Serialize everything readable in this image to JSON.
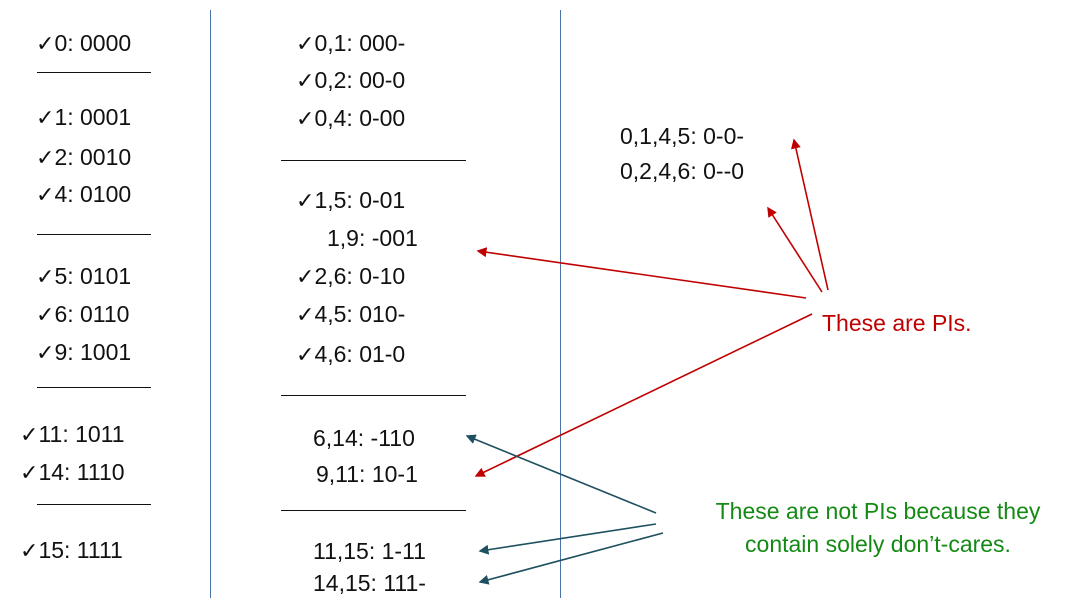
{
  "check_mark": "✓",
  "colors": {
    "divider": "#4a74a8",
    "red_arrow": "#c00000",
    "teal_arrow": "#1f5060",
    "green_text": "#148a14"
  },
  "column1": {
    "groups": [
      [
        {
          "checked": true,
          "text": "0: 0000"
        }
      ],
      [
        {
          "checked": true,
          "text": "1: 0001"
        },
        {
          "checked": true,
          "text": "2: 0010"
        },
        {
          "checked": true,
          "text": "4: 0100"
        }
      ],
      [
        {
          "checked": true,
          "text": "5: 0101"
        },
        {
          "checked": true,
          "text": "6: 0110"
        },
        {
          "checked": true,
          "text": "9: 1001"
        }
      ],
      [
        {
          "checked": true,
          "text": "11: 1011"
        },
        {
          "checked": true,
          "text": "14: 1110"
        }
      ],
      [
        {
          "checked": true,
          "text": "15: 1111"
        }
      ]
    ]
  },
  "column2": {
    "groups": [
      [
        {
          "checked": true,
          "text": "0,1: 000-"
        },
        {
          "checked": true,
          "text": "0,2: 00-0"
        },
        {
          "checked": true,
          "text": "0,4: 0-00"
        }
      ],
      [
        {
          "checked": true,
          "text": "1,5: 0-01"
        },
        {
          "checked": false,
          "text": "1,9: -001"
        },
        {
          "checked": true,
          "text": "2,6: 0-10"
        },
        {
          "checked": true,
          "text": "4,5: 010-"
        },
        {
          "checked": true,
          "text": "4,6: 01-0"
        }
      ],
      [
        {
          "checked": false,
          "text": "6,14: -110"
        },
        {
          "checked": false,
          "text": "9,11: 10-1"
        }
      ],
      [
        {
          "checked": false,
          "text": "11,15: 1-11"
        },
        {
          "checked": false,
          "text": "14,15: 111-"
        }
      ]
    ]
  },
  "column3": {
    "items": [
      {
        "text": "0,1,4,5: 0-0-"
      },
      {
        "text": "0,2,4,6: 0--0"
      }
    ]
  },
  "annotations": {
    "pis": "These are PIs.",
    "not_pis_line1": "These are not PIs because they",
    "not_pis_line2": "contain solely don’t-cares."
  }
}
